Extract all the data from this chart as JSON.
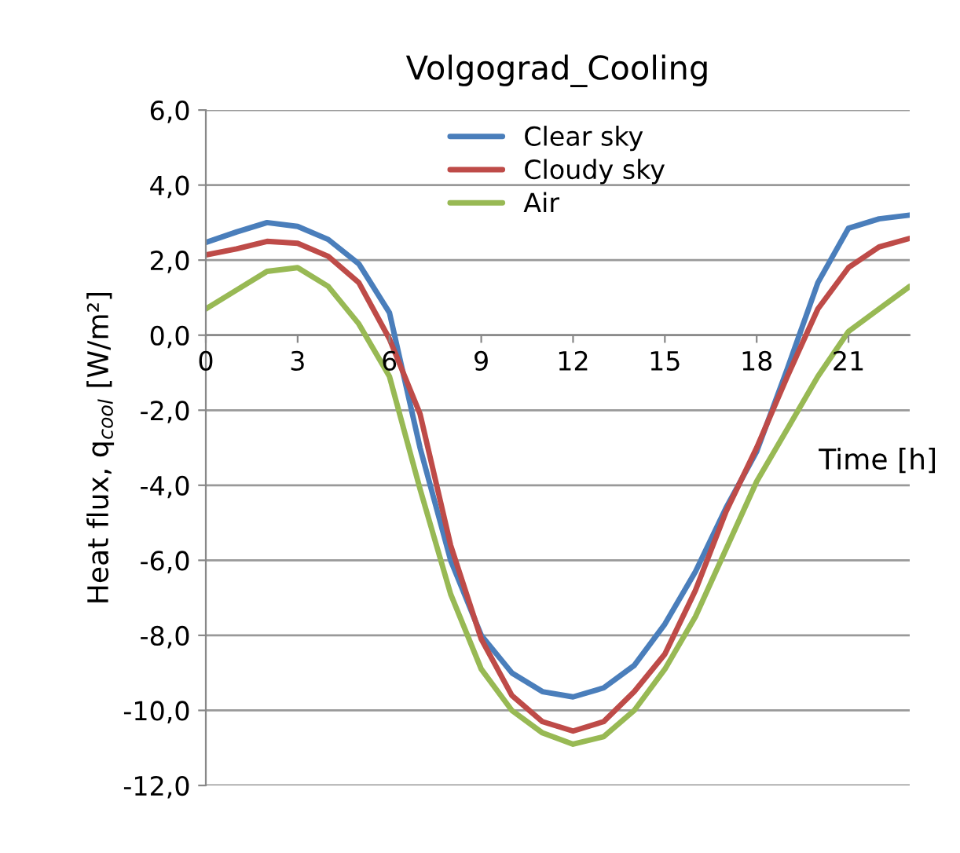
{
  "chart_data": {
    "type": "line",
    "title": "Volgograd_Cooling",
    "xlabel": "Time [h]",
    "ylabel": "Heat flux, q$_{cool}$ [W/m²]",
    "x": [
      0,
      1,
      2,
      3,
      4,
      5,
      6,
      7,
      8,
      9,
      10,
      11,
      12,
      13,
      14,
      15,
      16,
      17,
      18,
      19,
      20,
      21,
      22,
      23
    ],
    "series": [
      {
        "name": "Clear sky",
        "color": "#4a7ebb",
        "values": [
          2.47,
          2.75,
          3.0,
          2.9,
          2.55,
          1.9,
          0.6,
          -3.0,
          -6.0,
          -8.0,
          -9.0,
          -9.5,
          -9.64,
          -9.4,
          -8.8,
          -7.7,
          -6.3,
          -4.6,
          -3.1,
          -0.9,
          1.4,
          2.85,
          3.1,
          3.2
        ]
      },
      {
        "name": "Cloudy sky",
        "color": "#be4b48",
        "values": [
          2.14,
          2.3,
          2.5,
          2.45,
          2.1,
          1.4,
          -0.1,
          -2.1,
          -5.6,
          -8.1,
          -9.6,
          -10.3,
          -10.55,
          -10.3,
          -9.5,
          -8.5,
          -6.8,
          -4.7,
          -3.0,
          -1.1,
          0.7,
          1.8,
          2.35,
          2.58
        ]
      },
      {
        "name": "Air",
        "color": "#98b954",
        "values": [
          0.7,
          1.2,
          1.7,
          1.8,
          1.3,
          0.3,
          -1.1,
          -4.1,
          -6.9,
          -8.9,
          -10.0,
          -10.6,
          -10.9,
          -10.7,
          -10.0,
          -8.9,
          -7.5,
          -5.7,
          -3.9,
          -2.5,
          -1.1,
          0.1,
          0.7,
          1.3
        ]
      }
    ],
    "xlim": [
      0,
      23
    ],
    "xticks": [
      0,
      3,
      6,
      9,
      12,
      15,
      18,
      21
    ],
    "ylim": [
      -12,
      6
    ],
    "yticks": [
      {
        "value": -12,
        "label": "-12,0"
      },
      {
        "value": -10,
        "label": "-10,0"
      },
      {
        "value": -8,
        "label": "-8,0"
      },
      {
        "value": -6,
        "label": "-6,0"
      },
      {
        "value": -4,
        "label": "-4,0"
      },
      {
        "value": -2,
        "label": "-2,0"
      },
      {
        "value": 0,
        "label": "0,0"
      },
      {
        "value": 2,
        "label": "2,0"
      },
      {
        "value": 4,
        "label": "4,0"
      },
      {
        "value": 6,
        "label": "6,0"
      }
    ],
    "grid": "y",
    "legend": "top",
    "marker": "none",
    "line_style": "solid"
  }
}
